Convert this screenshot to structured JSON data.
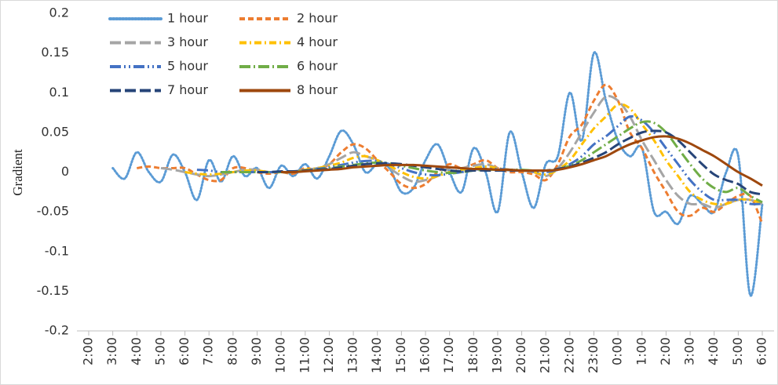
{
  "chart_data": {
    "type": "line",
    "y_label": "Gradient",
    "categories": [
      "2:00",
      null,
      "3:00",
      null,
      "4:00",
      null,
      "5:00",
      null,
      "6:00",
      null,
      "7:00",
      null,
      "8:00",
      null,
      "9:00",
      null,
      "10:00",
      null,
      "11:00",
      null,
      "12:00",
      null,
      "13:00",
      null,
      "14:00",
      null,
      "15:00",
      null,
      "16:00",
      null,
      "17:00",
      null,
      "18:00",
      null,
      "19:00",
      null,
      "20:00",
      null,
      "21:00",
      null,
      "22:00",
      null,
      "23:00",
      null,
      "0:00",
      null,
      "1:00",
      null,
      "2:00",
      null,
      "3:00",
      null,
      "4:00",
      null,
      "5:00",
      null,
      "6:00"
    ],
    "ylim": [
      -0.2,
      0.2
    ],
    "yticks": [
      0.2,
      0.15,
      0.1,
      0.05,
      0,
      -0.05,
      -0.1,
      -0.15,
      -0.2
    ],
    "grid": false,
    "legend": "top-left",
    "smooth": true,
    "series": [
      {
        "name": "1 hour",
        "color": "#5b9bd5",
        "dash": "dot",
        "values": [
          null,
          null,
          0.005,
          -0.008,
          0.025,
          0,
          -0.012,
          0.022,
          0,
          -0.035,
          0.015,
          -0.012,
          0.02,
          -0.005,
          0.005,
          -0.02,
          0.008,
          -0.005,
          0.01,
          -0.008,
          0.02,
          0.052,
          0.035,
          0,
          0.01,
          0.005,
          -0.025,
          -0.02,
          0.015,
          0.035,
          0,
          -0.025,
          0.03,
          0,
          -0.05,
          0.05,
          0,
          -0.045,
          0.01,
          0.02,
          0.1,
          0.04,
          0.15,
          0.09,
          0.04,
          0.02,
          0.03,
          -0.05,
          -0.05,
          -0.065,
          -0.03,
          -0.04,
          -0.05,
          0,
          0.02,
          -0.155,
          -0.04
        ]
      },
      {
        "name": "2 hour",
        "color": "#ed7d31",
        "dash": "dash",
        "values": [
          null,
          null,
          null,
          null,
          0.005,
          0.007,
          0.005,
          0.005,
          0.005,
          -0.003,
          -0.01,
          -0.01,
          0.005,
          0.005,
          0,
          -0.002,
          0,
          -0.002,
          0.005,
          0.003,
          0.01,
          0.025,
          0.035,
          0.03,
          0.015,
          0,
          -0.015,
          -0.02,
          -0.015,
          0,
          0.01,
          0.005,
          0.01,
          0.015,
          0.005,
          0,
          0,
          -0.003,
          -0.01,
          0.01,
          0.045,
          0.06,
          0.09,
          0.11,
          0.09,
          0.05,
          0.03,
          0,
          -0.025,
          -0.05,
          -0.055,
          -0.045,
          -0.05,
          -0.04,
          -0.03,
          -0.03,
          -0.065
        ]
      },
      {
        "name": "3 hour",
        "color": "#a5a5a5",
        "dash": "long-dash",
        "values": [
          null,
          null,
          null,
          null,
          null,
          null,
          0.005,
          0.003,
          0,
          -0.003,
          -0.005,
          -0.003,
          0,
          0.003,
          0.003,
          0,
          0,
          0,
          0.003,
          0.005,
          0.01,
          0.018,
          0.025,
          0.02,
          0.015,
          0.005,
          -0.005,
          -0.012,
          -0.01,
          -0.005,
          0.005,
          0.005,
          0.008,
          0.01,
          0.005,
          0.002,
          0.002,
          0,
          -0.005,
          0.005,
          0.025,
          0.05,
          0.075,
          0.095,
          0.09,
          0.07,
          0.04,
          0.015,
          -0.01,
          -0.03,
          -0.04,
          -0.04,
          -0.045,
          -0.04,
          -0.035,
          -0.035,
          -0.04
        ]
      },
      {
        "name": "4 hour",
        "color": "#ffc000",
        "dash": "dash-dot",
        "values": [
          null,
          null,
          null,
          null,
          null,
          null,
          null,
          null,
          0,
          -0.002,
          -0.003,
          -0.002,
          0,
          0.002,
          0.002,
          0,
          0,
          0,
          0.003,
          0.005,
          0.008,
          0.012,
          0.018,
          0.02,
          0.015,
          0.008,
          0,
          -0.006,
          -0.008,
          -0.005,
          0,
          0.003,
          0.005,
          0.007,
          0.005,
          0.003,
          0.002,
          0,
          -0.003,
          0.003,
          0.015,
          0.035,
          0.055,
          0.07,
          0.085,
          0.08,
          0.06,
          0.04,
          0.015,
          -0.005,
          -0.025,
          -0.035,
          -0.04,
          -0.04,
          -0.035,
          -0.035,
          -0.04
        ]
      },
      {
        "name": "5 hour",
        "color": "#4472c4",
        "dash": "long-dash-dot-dot",
        "values": [
          null,
          null,
          null,
          null,
          null,
          null,
          null,
          null,
          null,
          0.003,
          0.002,
          0,
          0,
          0,
          0,
          0,
          0,
          0,
          0.002,
          0.004,
          0.006,
          0.009,
          0.012,
          0.014,
          0.014,
          0.01,
          0.005,
          0,
          -0.003,
          -0.004,
          -0.002,
          0,
          0.003,
          0.004,
          0.004,
          0.003,
          0.002,
          0.001,
          0,
          0.003,
          0.01,
          0.02,
          0.035,
          0.045,
          0.058,
          0.07,
          0.065,
          0.05,
          0.03,
          0.01,
          -0.01,
          -0.025,
          -0.035,
          -0.035,
          -0.035,
          -0.04,
          -0.04
        ]
      },
      {
        "name": "6 hour",
        "color": "#70ad47",
        "dash": "long-dash-dot",
        "values": [
          null,
          null,
          null,
          null,
          null,
          null,
          null,
          null,
          null,
          null,
          null,
          0,
          0,
          0,
          0,
          0,
          0,
          0,
          0.002,
          0.003,
          0.005,
          0.007,
          0.009,
          0.011,
          0.012,
          0.011,
          0.008,
          0.005,
          0.002,
          0,
          -0.001,
          0,
          0.002,
          0.003,
          0.003,
          0.003,
          0.003,
          0.002,
          0.002,
          0.004,
          0.008,
          0.015,
          0.025,
          0.035,
          0.045,
          0.055,
          0.063,
          0.062,
          0.05,
          0.03,
          0.01,
          -0.008,
          -0.02,
          -0.025,
          -0.02,
          -0.03,
          -0.038
        ]
      },
      {
        "name": "7 hour",
        "color": "#264478",
        "dash": "long-dash",
        "values": [
          null,
          null,
          null,
          null,
          null,
          null,
          null,
          null,
          null,
          null,
          null,
          null,
          null,
          null,
          0,
          0,
          0.001,
          0.001,
          0.002,
          0.003,
          0.004,
          0.006,
          0.008,
          0.01,
          0.011,
          0.011,
          0.01,
          0.008,
          0.006,
          0.004,
          0.002,
          0.001,
          0.002,
          0.002,
          0.002,
          0.002,
          0.002,
          0.002,
          0.002,
          0.004,
          0.007,
          0.012,
          0.018,
          0.025,
          0.035,
          0.043,
          0.05,
          0.052,
          0.05,
          0.04,
          0.025,
          0.01,
          -0.003,
          -0.01,
          -0.015,
          -0.025,
          -0.028
        ]
      },
      {
        "name": "8 hour",
        "color": "#9e480e",
        "dash": "solid",
        "values": [
          null,
          null,
          null,
          null,
          null,
          null,
          null,
          null,
          null,
          null,
          null,
          null,
          null,
          null,
          null,
          null,
          0,
          0,
          0.001,
          0.002,
          0.003,
          0.004,
          0.006,
          0.007,
          0.008,
          0.009,
          0.009,
          0.009,
          0.008,
          0.007,
          0.006,
          0.005,
          0.004,
          0.004,
          0.003,
          0.003,
          0.002,
          0.002,
          0.002,
          0.003,
          0.006,
          0.01,
          0.015,
          0.02,
          0.028,
          0.035,
          0.04,
          0.044,
          0.045,
          0.042,
          0.036,
          0.028,
          0.02,
          0.01,
          0,
          -0.008,
          -0.017
        ]
      }
    ]
  }
}
